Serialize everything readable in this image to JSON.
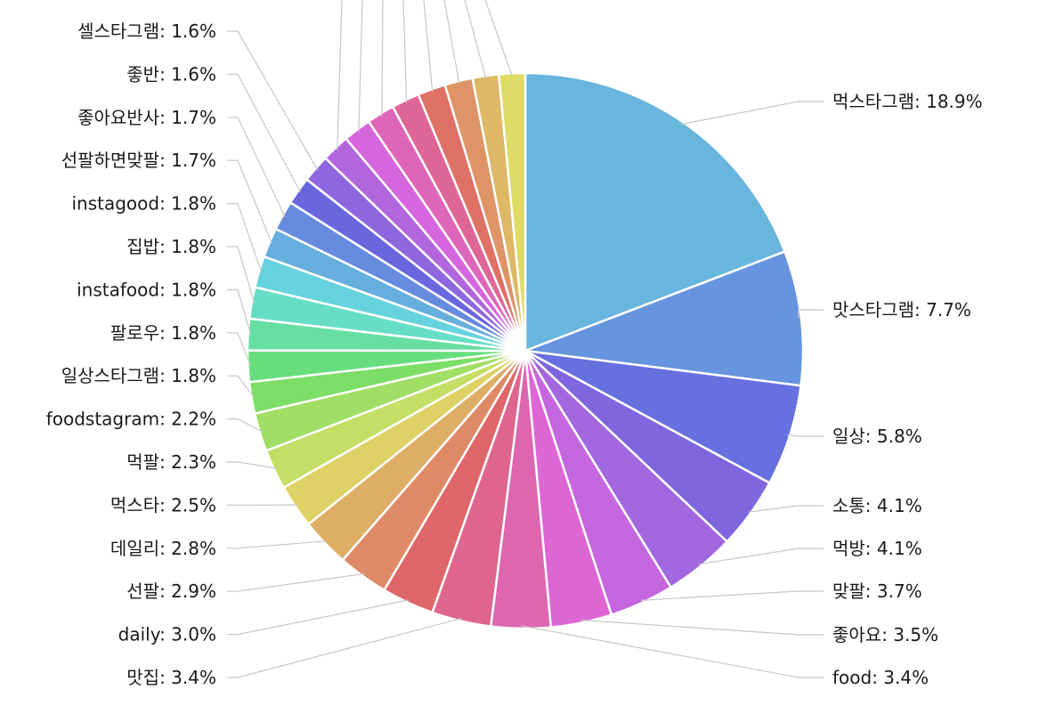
{
  "chart_data": {
    "type": "pie",
    "legend": "none",
    "label_format": "{name}: {value}%",
    "slices": [
      {
        "name": "먹스타그램",
        "value": 18.9,
        "color": "#68b5de"
      },
      {
        "name": "맛스타그램",
        "value": 7.7,
        "color": "#6694de"
      },
      {
        "name": "일상",
        "value": 5.8,
        "color": "#6670de"
      },
      {
        "name": "소통",
        "value": 4.1,
        "color": "#7e66de"
      },
      {
        "name": "먹방",
        "value": 4.1,
        "color": "#a266de"
      },
      {
        "name": "맞팔",
        "value": 3.7,
        "color": "#c666de"
      },
      {
        "name": "좋아요",
        "value": 3.5,
        "color": "#de66d4"
      },
      {
        "name": "food",
        "value": 3.4,
        "color": "#de66b0"
      },
      {
        "name": "맛집",
        "value": 3.4,
        "color": "#de668c"
      },
      {
        "name": "daily",
        "value": 3.0,
        "color": "#de6668"
      },
      {
        "name": "선팔",
        "value": 2.9,
        "color": "#de8a66"
      },
      {
        "name": "데일리",
        "value": 2.8,
        "color": "#deae66"
      },
      {
        "name": "먹스타",
        "value": 2.5,
        "color": "#ded266"
      },
      {
        "name": "먹팔",
        "value": 2.3,
        "color": "#c4de66"
      },
      {
        "name": "foodstagram",
        "value": 2.2,
        "color": "#a0de66"
      },
      {
        "name": "일상스타그램",
        "value": 1.8,
        "color": "#7cde66"
      },
      {
        "name": "팔로우",
        "value": 1.8,
        "color": "#66de7e"
      },
      {
        "name": "instafood",
        "value": 1.8,
        "color": "#66dea2"
      },
      {
        "name": "집밥",
        "value": 1.8,
        "color": "#66dec6"
      },
      {
        "name": "instagood",
        "value": 1.8,
        "color": "#66d2de"
      },
      {
        "name": "선팔하면맞팔",
        "value": 1.7,
        "color": "#66aede"
      },
      {
        "name": "좋아요반사",
        "value": 1.7,
        "color": "#668ade"
      },
      {
        "name": "좋반",
        "value": 1.6,
        "color": "#6a66de"
      },
      {
        "name": "셀스타그램",
        "value": 1.6,
        "color": "#8e66de"
      },
      {
        "name": "",
        "value": 1.6,
        "color": "#b266de"
      },
      {
        "name": "",
        "value": 1.6,
        "color": "#d666de"
      },
      {
        "name": "",
        "value": 1.6,
        "color": "#de66ba"
      },
      {
        "name": "",
        "value": 1.6,
        "color": "#de6696"
      },
      {
        "name": "",
        "value": 1.6,
        "color": "#de7066"
      },
      {
        "name": "",
        "value": 1.6,
        "color": "#de9466"
      },
      {
        "name": "",
        "value": 1.5,
        "color": "#deb866"
      },
      {
        "name": "",
        "value": 1.5,
        "color": "#dedc66"
      }
    ]
  }
}
